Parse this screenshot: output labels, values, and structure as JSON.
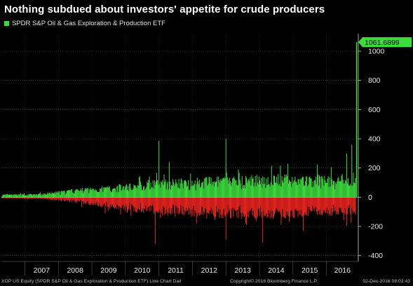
{
  "title": "Nothing subdued about investors' appetite for crude producers",
  "legend": {
    "label": "SPDR S&P Oil & Gas Exploration & Production ETF",
    "color": "#3ddc3d"
  },
  "footer": {
    "left": "XOP US Equity (SPDR S&P Oil & Gas Exploration & Production ETF) Line Chart  Dail",
    "middle": "Copyright© 2016 Bloomberg Finance L.P.",
    "right": "02-Dec-2016 08:02:43"
  },
  "chart_data": {
    "type": "bar",
    "title": "Nothing subdued about investors' appetite for crude producers",
    "series": [
      {
        "name": "SPDR S&P Oil & Gas Exploration & Production ETF",
        "color_positive": "#3ddc3d",
        "color_negative": "#e8241c"
      }
    ],
    "x_tick_labels": [
      "2007",
      "2008",
      "2009",
      "2010",
      "2011",
      "2012",
      "2013",
      "2014",
      "2015",
      "2016"
    ],
    "x_range": [
      2006.3,
      2016.95
    ],
    "y_ticks": [
      -400,
      -200,
      0,
      200,
      400,
      600,
      800,
      1000
    ],
    "ylim": [
      -440,
      1120
    ],
    "last_value": 1061.6899,
    "last_value_label": "1061.6899",
    "peaks": [
      {
        "x": 2011.0,
        "value": 385
      },
      {
        "x": 2011.3,
        "value": 240
      },
      {
        "x": 2013.0,
        "value": 400
      },
      {
        "x": 2016.6,
        "value": 300
      },
      {
        "x": 2016.75,
        "value": 360
      },
      {
        "x": 2016.9,
        "value": 1061.6899
      }
    ],
    "troughs": [
      {
        "x": 2010.9,
        "value": -320
      },
      {
        "x": 2013.0,
        "value": -290
      },
      {
        "x": 2014.1,
        "value": -310
      },
      {
        "x": 2015.3,
        "value": -230
      },
      {
        "x": 2016.6,
        "value": -195
      }
    ],
    "envelope": [
      {
        "x": 2006.3,
        "pos": 20,
        "neg": -8
      },
      {
        "x": 2007.5,
        "pos": 25,
        "neg": -12
      },
      {
        "x": 2008.5,
        "pos": 60,
        "neg": -40
      },
      {
        "x": 2009.5,
        "pos": 80,
        "neg": -80
      },
      {
        "x": 2010.5,
        "pos": 110,
        "neg": -110
      },
      {
        "x": 2011.5,
        "pos": 130,
        "neg": -135
      },
      {
        "x": 2012.5,
        "pos": 140,
        "neg": -140
      },
      {
        "x": 2013.5,
        "pos": 150,
        "neg": -150
      },
      {
        "x": 2014.5,
        "pos": 160,
        "neg": -160
      },
      {
        "x": 2015.5,
        "pos": 150,
        "neg": -130
      },
      {
        "x": 2016.5,
        "pos": 150,
        "neg": -130
      }
    ],
    "grid": "horizontal dotted",
    "legend_position": "top-left"
  }
}
